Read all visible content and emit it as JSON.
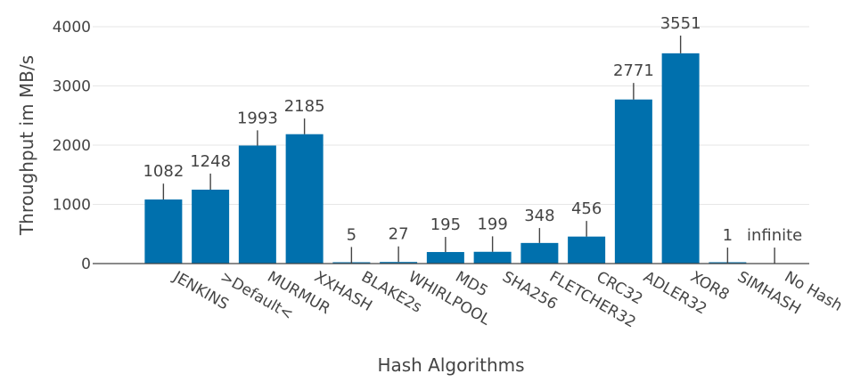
{
  "chart_data": {
    "type": "bar",
    "title": "",
    "xlabel": "Hash Algorithms",
    "ylabel": "Throughput im MB/s",
    "ylim": [
      0,
      4000
    ],
    "yticks": [
      0,
      1000,
      2000,
      3000,
      4000
    ],
    "grid": true,
    "bar_color": "#0070ad",
    "categories": [
      "JENKINS",
      ">Default<",
      "MURMUR",
      "XXHASH",
      "BLAKE2s",
      "WHIRLPOOL",
      "MD5",
      "SHA256",
      "FLETCHER32",
      "CRC32",
      "ADLER32",
      "XOR8",
      "SIMHASH",
      "No Hash"
    ],
    "values": [
      1082,
      1248,
      1993,
      2185,
      5,
      27,
      195,
      199,
      348,
      456,
      2771,
      3551,
      1,
      null
    ],
    "value_labels": [
      "1082",
      "1248",
      "1993",
      "2185",
      "5",
      "27",
      "195",
      "199",
      "348",
      "456",
      "2771",
      "3551",
      "1",
      "infinite"
    ],
    "error_top": [
      1350,
      1520,
      2250,
      2450,
      280,
      290,
      450,
      460,
      600,
      720,
      3050,
      3850,
      270,
      270
    ]
  }
}
